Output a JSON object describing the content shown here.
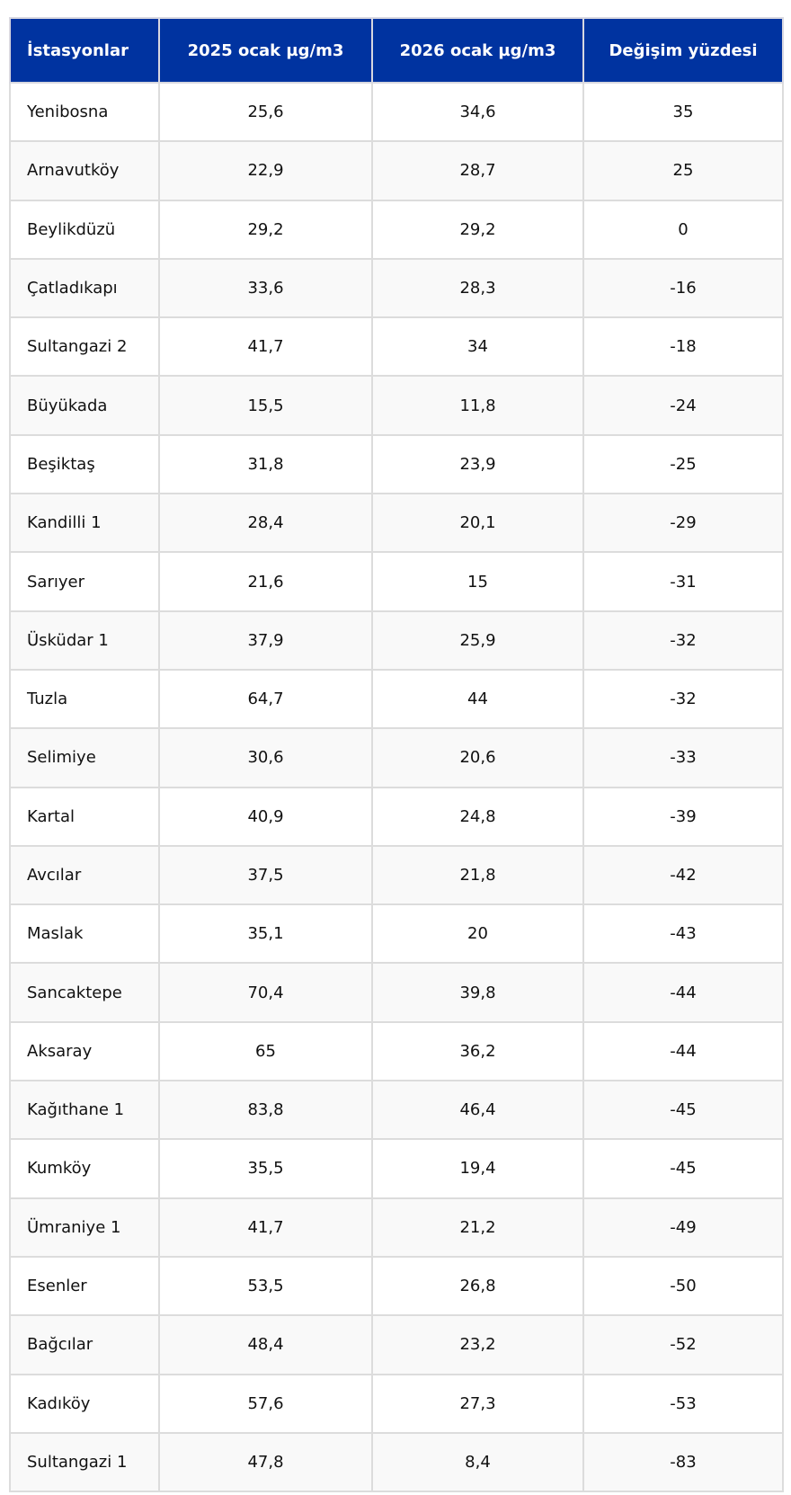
{
  "table": {
    "headers": [
      "İstasyonlar",
      "2025 ocak µg/m3",
      "2026 ocak µg/m3",
      "Değişim yüzdesi"
    ],
    "header_color": "#0033a0",
    "rows": [
      [
        "Yenibosna",
        "25,6",
        "34,6",
        "35"
      ],
      [
        "Arnavutköy",
        "22,9",
        "28,7",
        "25"
      ],
      [
        "Beylikdüzü",
        "29,2",
        "29,2",
        "0"
      ],
      [
        "Çatladıkapı",
        "33,6",
        "28,3",
        "-16"
      ],
      [
        "Sultangazi 2",
        "41,7",
        "34",
        "-18"
      ],
      [
        "Büyükada",
        "15,5",
        "11,8",
        "-24"
      ],
      [
        "Beşiktaş",
        "31,8",
        "23,9",
        "-25"
      ],
      [
        "Kandilli 1",
        "28,4",
        "20,1",
        "-29"
      ],
      [
        "Sarıyer",
        "21,6",
        "15",
        "-31"
      ],
      [
        "Üsküdar 1",
        "37,9",
        "25,9",
        "-32"
      ],
      [
        "Tuzla",
        "64,7",
        "44",
        "-32"
      ],
      [
        "Selimiye",
        "30,6",
        "20,6",
        "-33"
      ],
      [
        "Kartal",
        "40,9",
        "24,8",
        "-39"
      ],
      [
        "Avcılar",
        "37,5",
        "21,8",
        "-42"
      ],
      [
        "Maslak",
        "35,1",
        "20",
        "-43"
      ],
      [
        "Sancaktepe",
        "70,4",
        "39,8",
        "-44"
      ],
      [
        "Aksaray",
        "65",
        "36,2",
        "-44"
      ],
      [
        "Kağıthane 1",
        "83,8",
        "46,4",
        "-45"
      ],
      [
        "Kumköy",
        "35,5",
        "19,4",
        "-45"
      ],
      [
        "Ümraniye 1",
        "41,7",
        "21,2",
        "-49"
      ],
      [
        "Esenler",
        "53,5",
        "26,8",
        "-50"
      ],
      [
        "Bağcılar",
        "48,4",
        "23,2",
        "-52"
      ],
      [
        "Kadıköy",
        "57,6",
        "27,3",
        "-53"
      ],
      [
        "Sultangazi 1",
        "47,8",
        "8,4",
        "-83"
      ]
    ]
  }
}
